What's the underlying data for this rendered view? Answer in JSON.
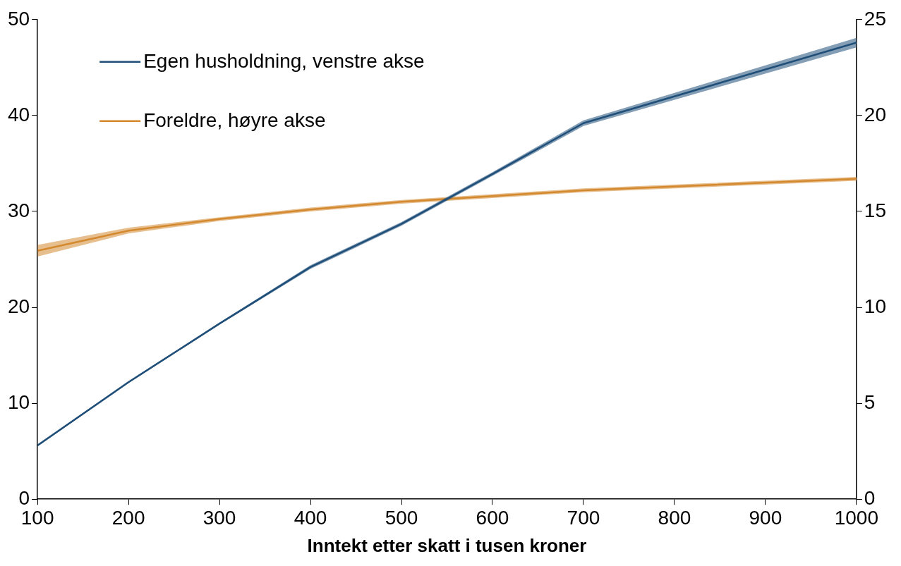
{
  "chart_data": {
    "type": "line",
    "xlabel": "Inntekt etter skatt i tusen kroner",
    "x": [
      100,
      200,
      300,
      400,
      500,
      600,
      700,
      1000
    ],
    "series": [
      {
        "name": "Egen husholdning, venstre akse",
        "color": "#1f4e79",
        "values": [
          5.6,
          12.2,
          18.3,
          24.2,
          28.7,
          33.9,
          39.2,
          47.6
        ],
        "lower": [
          5.5,
          12.1,
          18.2,
          24.0,
          28.5,
          33.7,
          38.9,
          47.1
        ],
        "upper": [
          5.7,
          12.3,
          18.4,
          24.4,
          28.9,
          34.1,
          39.5,
          48.1
        ]
      },
      {
        "name": "Foreldre, høyre akse",
        "color": "#d4892f",
        "axis": "y2",
        "values": [
          12.95,
          14.0,
          14.6,
          15.1,
          15.5,
          15.8,
          16.1,
          16.7
        ],
        "lower": [
          12.65,
          13.85,
          14.5,
          15.0,
          15.4,
          15.7,
          16.0,
          16.6
        ],
        "upper": [
          13.25,
          14.15,
          14.7,
          15.2,
          15.6,
          15.9,
          16.2,
          16.8
        ]
      }
    ],
    "xlim": [
      100,
      1000
    ],
    "xticks": [
      100,
      200,
      300,
      400,
      500,
      600,
      700,
      800,
      900,
      1000
    ],
    "ylim": [
      0,
      50
    ],
    "yticks": [
      0,
      10,
      20,
      30,
      40,
      50
    ],
    "y2lim": [
      0,
      25
    ],
    "y2ticks": [
      0,
      5,
      10,
      15,
      20,
      25
    ],
    "grid": false,
    "legend": "top left",
    "marker": "none",
    "line_style": "solid"
  }
}
